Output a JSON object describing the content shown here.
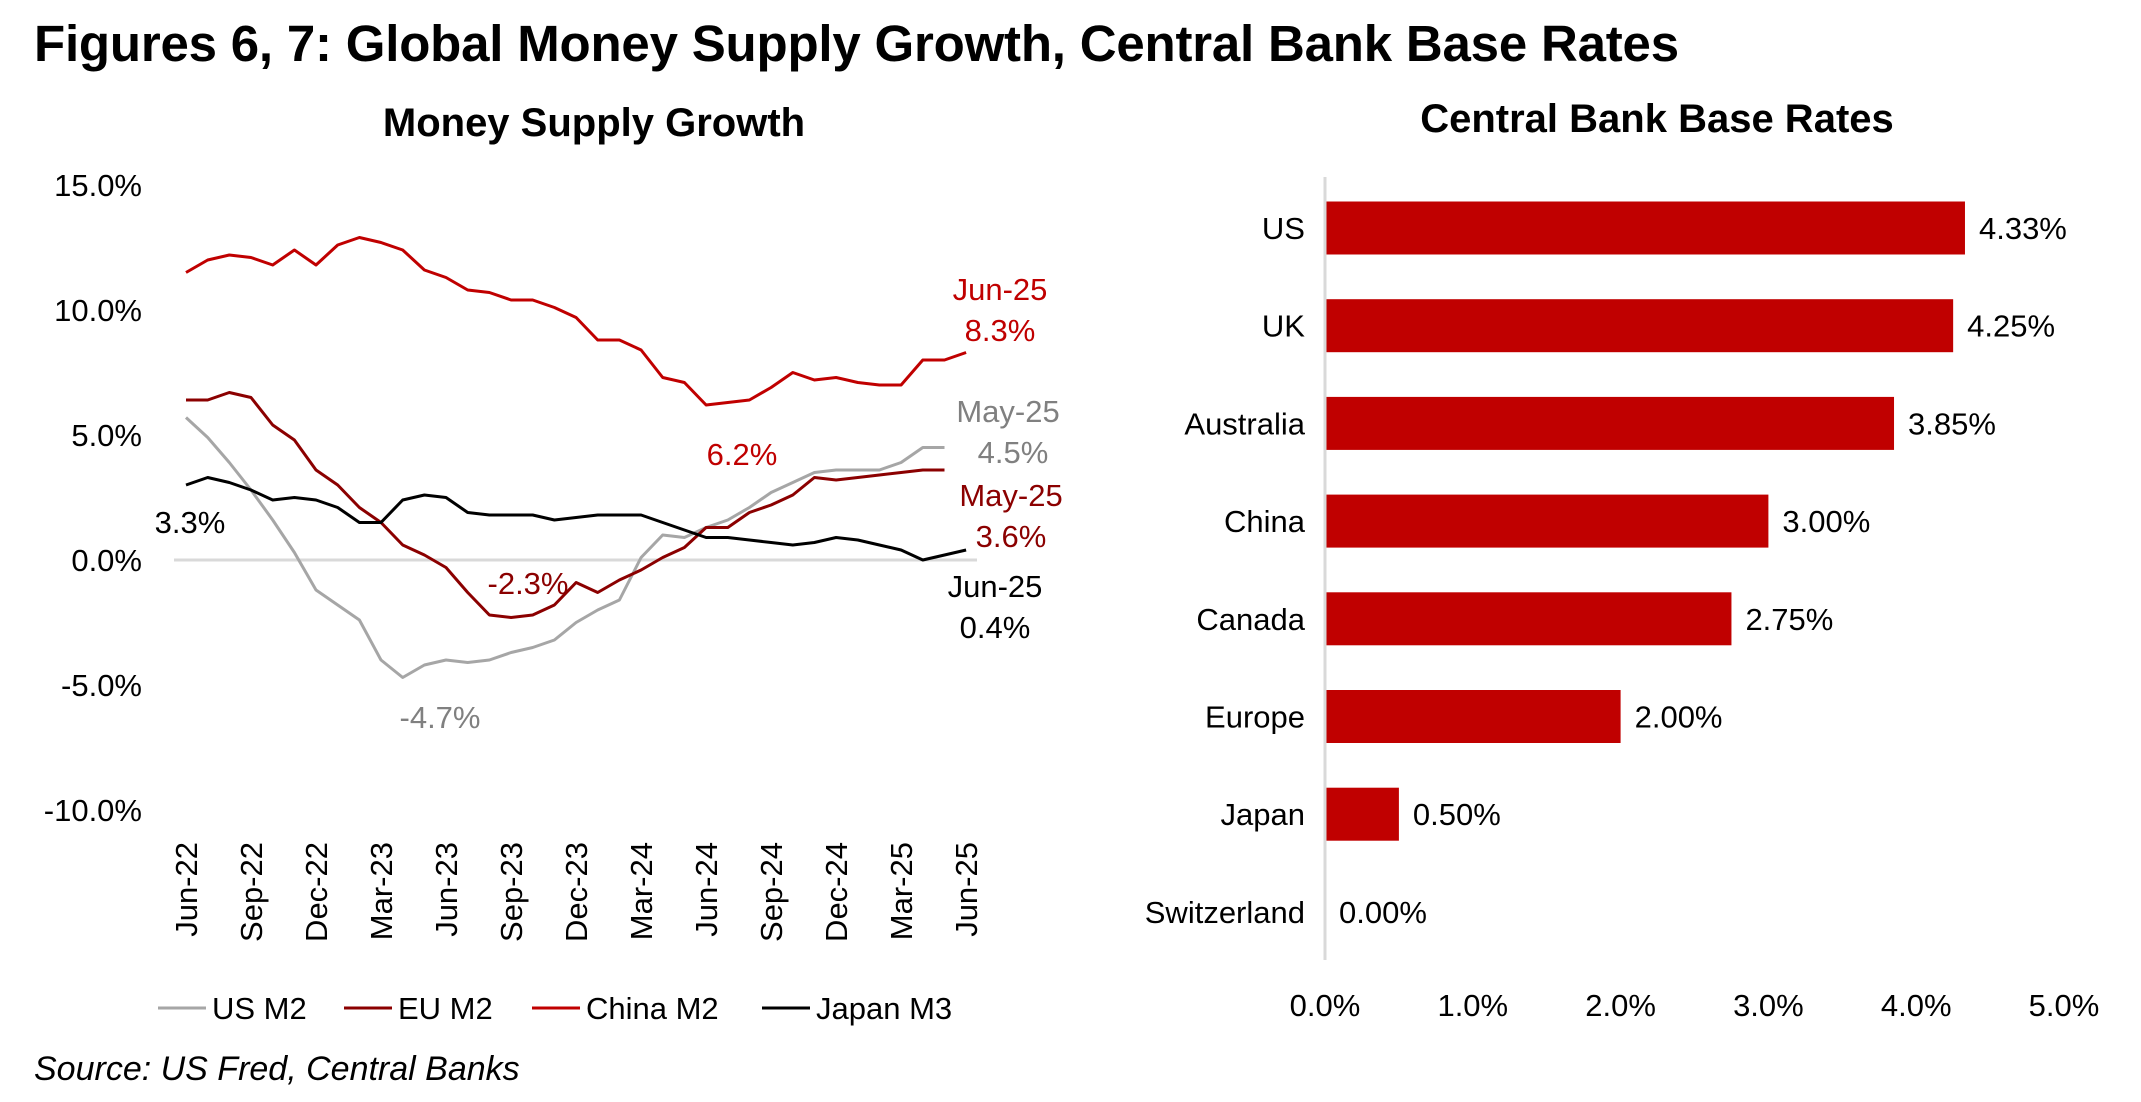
{
  "page_title": "Figures 6, 7: Global Money Supply Growth, Central Bank Base Rates",
  "source": "Source: US Fred, Central Banks",
  "chart_data": [
    {
      "type": "line",
      "title": "Money Supply Growth",
      "xlabel": "",
      "ylabel": "",
      "ylim": [
        -10,
        15
      ],
      "yticks": [
        -10,
        -5,
        0,
        5,
        10,
        15
      ],
      "ytick_labels": [
        "-10.0%",
        "-5.0%",
        "0.0%",
        "5.0%",
        "10.0%",
        "15.0%"
      ],
      "x": [
        "Jun-22",
        "Jul-22",
        "Aug-22",
        "Sep-22",
        "Oct-22",
        "Nov-22",
        "Dec-22",
        "Jan-23",
        "Feb-23",
        "Mar-23",
        "Apr-23",
        "May-23",
        "Jun-23",
        "Jul-23",
        "Aug-23",
        "Sep-23",
        "Oct-23",
        "Nov-23",
        "Dec-23",
        "Jan-24",
        "Feb-24",
        "Mar-24",
        "Apr-24",
        "May-24",
        "Jun-24",
        "Jul-24",
        "Aug-24",
        "Sep-24",
        "Oct-24",
        "Nov-24",
        "Dec-24",
        "Jan-25",
        "Feb-25",
        "Mar-25",
        "Apr-25",
        "May-25",
        "Jun-25"
      ],
      "xtick_labels": [
        "Jun-22",
        "Sep-22",
        "Dec-22",
        "Mar-23",
        "Jun-23",
        "Sep-23",
        "Dec-23",
        "Mar-24",
        "Jun-24",
        "Sep-24",
        "Dec-24",
        "Mar-25",
        "Jun-25"
      ],
      "grid": false,
      "zero_line": true,
      "legend_position": "bottom",
      "series": [
        {
          "name": "US M2",
          "color": "#A6A6A6",
          "values": [
            5.7,
            4.9,
            3.9,
            2.8,
            1.6,
            0.3,
            -1.2,
            -1.8,
            -2.4,
            -4.0,
            -4.7,
            -4.2,
            -4.0,
            -4.1,
            -4.0,
            -3.7,
            -3.5,
            -3.2,
            -2.5,
            -2.0,
            -1.6,
            0.1,
            1.0,
            0.9,
            1.3,
            1.6,
            2.1,
            2.7,
            3.1,
            3.5,
            3.6,
            3.6,
            3.6,
            3.9,
            4.5,
            4.5
          ]
        },
        {
          "name": "EU M2",
          "color": "#8B0000",
          "values": [
            6.4,
            6.4,
            6.7,
            6.5,
            5.4,
            4.8,
            3.6,
            3.0,
            2.1,
            1.5,
            0.6,
            0.2,
            -0.3,
            -1.3,
            -2.2,
            -2.3,
            -2.2,
            -1.8,
            -0.9,
            -1.3,
            -0.8,
            -0.4,
            0.1,
            0.5,
            1.3,
            1.3,
            1.9,
            2.2,
            2.6,
            3.3,
            3.2,
            3.3,
            3.4,
            3.5,
            3.6,
            3.6
          ]
        },
        {
          "name": "China M2",
          "color": "#C00000",
          "values": [
            11.5,
            12.0,
            12.2,
            12.1,
            11.8,
            12.4,
            11.8,
            12.6,
            12.9,
            12.7,
            12.4,
            11.6,
            11.3,
            10.8,
            10.7,
            10.4,
            10.4,
            10.1,
            9.7,
            8.8,
            8.8,
            8.4,
            7.3,
            7.1,
            6.2,
            6.3,
            6.4,
            6.9,
            7.5,
            7.2,
            7.3,
            7.1,
            7.0,
            7.0,
            8.0,
            8.0,
            8.3
          ]
        },
        {
          "name": "Japan M3",
          "color": "#000000",
          "values": [
            3.0,
            3.3,
            3.1,
            2.8,
            2.4,
            2.5,
            2.4,
            2.1,
            1.5,
            1.5,
            2.4,
            2.6,
            2.5,
            1.9,
            1.8,
            1.8,
            1.8,
            1.6,
            1.7,
            1.8,
            1.8,
            1.8,
            1.5,
            1.2,
            0.9,
            0.9,
            0.8,
            0.7,
            0.6,
            0.7,
            0.9,
            0.8,
            0.6,
            0.4,
            0.0,
            0.2,
            0.4
          ]
        }
      ],
      "annotations": [
        {
          "text": "3.3%",
          "series": "Japan M3",
          "x": "Jul-22",
          "value": 3.3,
          "color": "#000000"
        },
        {
          "text": "-4.7%",
          "series": "US M2",
          "x": "Apr-23",
          "value": -4.7,
          "color": "#808080"
        },
        {
          "text": "-2.3%",
          "series": "EU M2",
          "x": "Sep-23",
          "value": -2.3,
          "color": "#8B0000"
        },
        {
          "text": "6.2%",
          "series": "China M2",
          "x": "Jun-24",
          "value": 6.2,
          "color": "#C00000"
        },
        {
          "text": "Jun-25",
          "series": "China M2",
          "x": "Jun-25",
          "value": 8.3,
          "color": "#C00000"
        },
        {
          "text": "8.3%",
          "series": "China M2",
          "x": "Jun-25",
          "value": 8.3,
          "color": "#C00000"
        },
        {
          "text": "May-25",
          "series": "US M2",
          "x": "May-25",
          "value": 4.5,
          "color": "#808080"
        },
        {
          "text": "4.5%",
          "series": "US M2",
          "x": "May-25",
          "value": 4.5,
          "color": "#808080"
        },
        {
          "text": "May-25",
          "series": "EU M2",
          "x": "May-25",
          "value": 3.6,
          "color": "#8B0000"
        },
        {
          "text": "3.6%",
          "series": "EU M2",
          "x": "May-25",
          "value": 3.6,
          "color": "#8B0000"
        },
        {
          "text": "Jun-25",
          "series": "Japan M3",
          "x": "Jun-25",
          "value": 0.4,
          "color": "#000000"
        },
        {
          "text": "0.4%",
          "series": "Japan M3",
          "x": "Jun-25",
          "value": 0.4,
          "color": "#000000"
        }
      ]
    },
    {
      "type": "bar",
      "orientation": "horizontal",
      "title": "Central Bank Base Rates",
      "xlabel": "",
      "ylabel": "",
      "xlim": [
        0,
        5
      ],
      "xticks": [
        0,
        1,
        2,
        3,
        4,
        5
      ],
      "xtick_labels": [
        "0.0%",
        "1.0%",
        "2.0%",
        "3.0%",
        "4.0%",
        "5.0%"
      ],
      "grid": false,
      "bar_color": "#C00000",
      "categories": [
        "US",
        "UK",
        "Australia",
        "China",
        "Canada",
        "Europe",
        "Japan",
        "Switzerland"
      ],
      "values": [
        4.33,
        4.25,
        3.85,
        3.0,
        2.75,
        2.0,
        0.5,
        0.0
      ],
      "data_labels": [
        "4.33%",
        "4.25%",
        "3.85%",
        "3.00%",
        "2.75%",
        "2.00%",
        "0.50%",
        "0.00%"
      ]
    }
  ]
}
